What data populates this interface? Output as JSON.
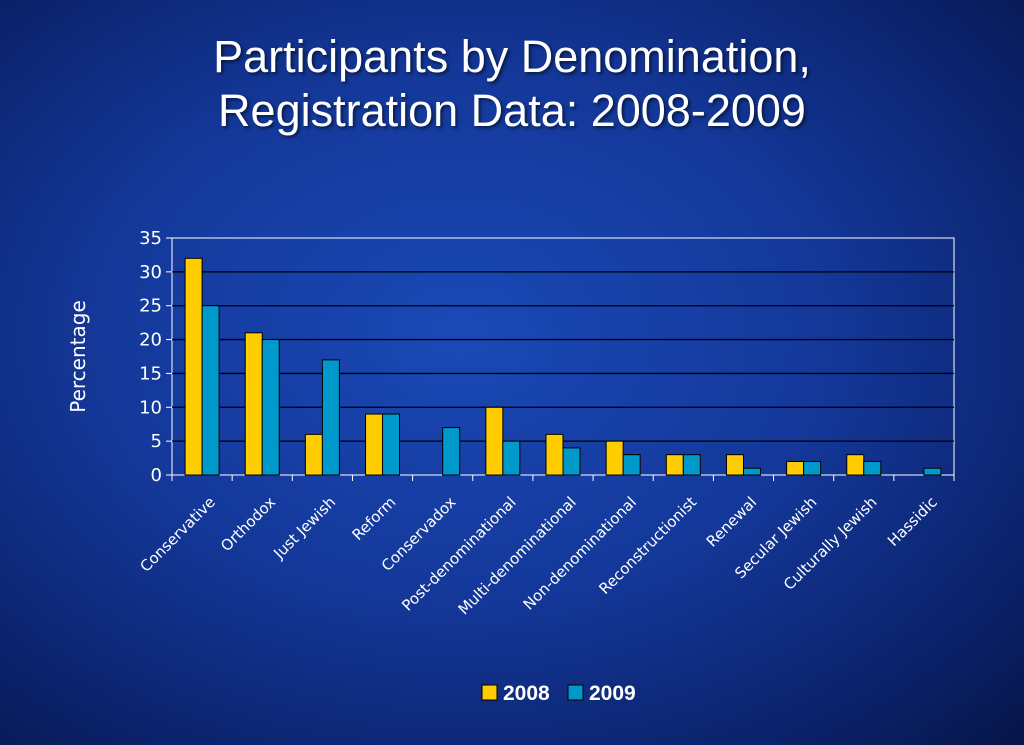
{
  "slide": {
    "title_line1": "Participants by Denomination,",
    "title_line2": "Registration Data: 2008-2009"
  },
  "chart_data": {
    "type": "bar",
    "title": "",
    "xlabel": "",
    "ylabel": "Percentage",
    "ylim": [
      0,
      35
    ],
    "yticks": [
      0,
      5,
      10,
      15,
      20,
      25,
      30,
      35
    ],
    "grid": true,
    "legend_position": "bottom",
    "categories": [
      "Conservative",
      "Orthodox",
      "Just Jewish",
      "Reform",
      "Conservadox",
      "Post-denominational",
      "Multi-denominational",
      "Non-denominational",
      "Reconstructionist",
      "Renewal",
      "Secular Jewish",
      "Culturally Jewish",
      "Hassidic"
    ],
    "series": [
      {
        "name": "2008",
        "color": "#ffcc00",
        "values": [
          32,
          21,
          6,
          9,
          0,
          10,
          6,
          5,
          3,
          3,
          2,
          3,
          0
        ]
      },
      {
        "name": "2009",
        "color": "#0099cc",
        "values": [
          25,
          20,
          17,
          9,
          7,
          5,
          4,
          3,
          3,
          1,
          2,
          2,
          1
        ]
      }
    ]
  }
}
